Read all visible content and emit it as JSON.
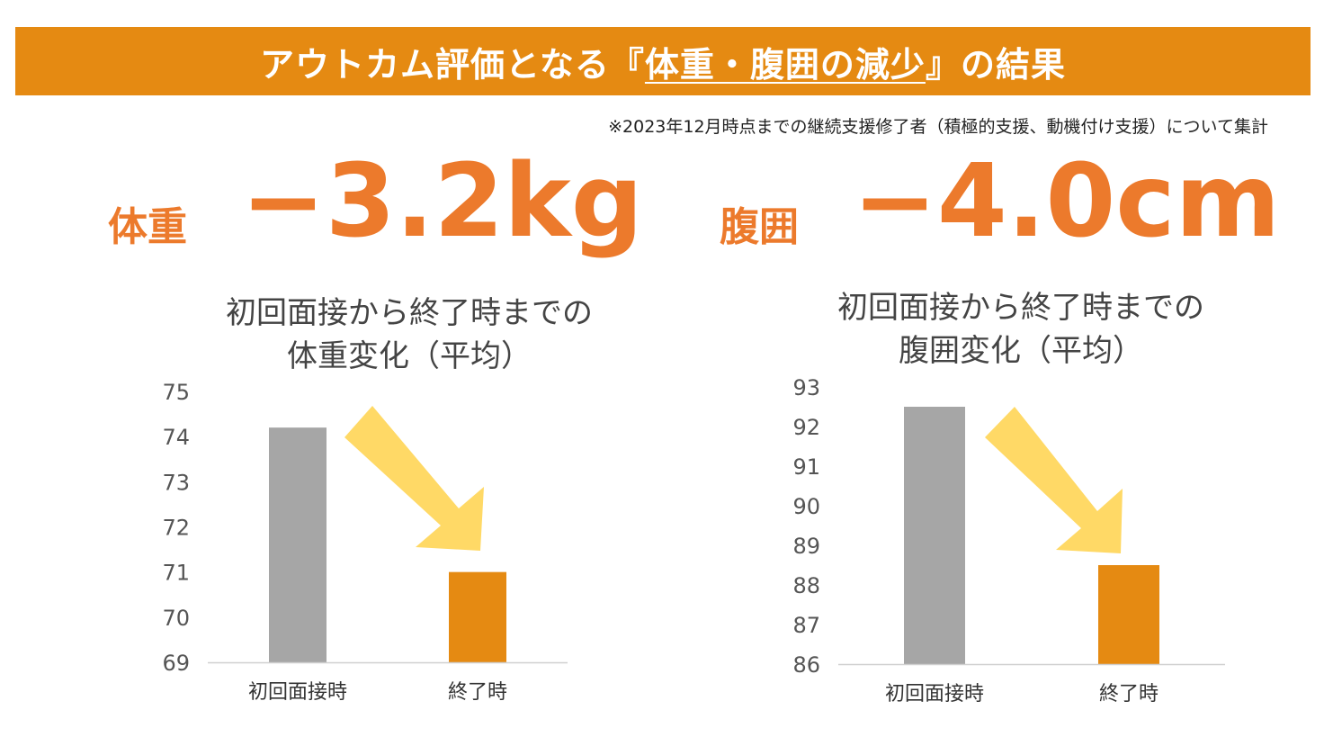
{
  "header": {
    "title_prefix": "アウトカム評価となる『",
    "title_highlight": "体重・腹囲の減少",
    "title_suffix": "』の結果"
  },
  "note": "※2023年12月時点までの継続支援修了者（積極的支援、動機付け支援）について集計",
  "stats": {
    "weight": {
      "label": "体重",
      "value": "−3.2kg"
    },
    "waist": {
      "label": "腹囲",
      "value": "−4.0cm"
    }
  },
  "colors": {
    "banner": "#e58a12",
    "accent": "#ec7a2c",
    "bar_initial": "#a6a6a6",
    "bar_final": "#e58a12",
    "arrow": "#ffd966"
  },
  "chart_data": [
    {
      "type": "bar",
      "title_lines": [
        "初回面接から終了時までの",
        "体重変化（平均）"
      ],
      "categories": [
        "初回面接時",
        "終了時"
      ],
      "values": [
        74.2,
        71.0
      ],
      "ylim": [
        69,
        75
      ],
      "yticks": [
        "69",
        "70",
        "71",
        "72",
        "73",
        "74",
        "75"
      ],
      "grid": false,
      "legend": "none"
    },
    {
      "type": "bar",
      "title_lines": [
        "初回面接から終了時までの",
        "腹囲変化（平均）"
      ],
      "categories": [
        "初回面接時",
        "終了時"
      ],
      "values": [
        92.5,
        88.5
      ],
      "ylim": [
        86,
        93
      ],
      "yticks": [
        "86",
        "87",
        "88",
        "89",
        "90",
        "91",
        "92",
        "93"
      ],
      "grid": false,
      "legend": "none"
    }
  ]
}
